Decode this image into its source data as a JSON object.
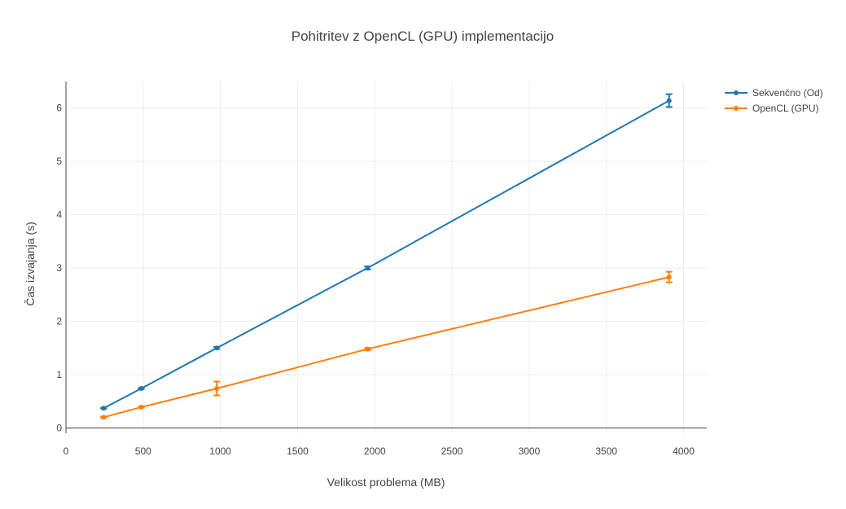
{
  "chart_data": {
    "type": "line",
    "title": "Pohitritev z OpenCL (GPU) implementacijo",
    "xlabel": "Velikost problema (MB)",
    "ylabel": "Čas izvajanja (s)",
    "xlim": [
      0,
      4150
    ],
    "ylim": [
      -0.1,
      6.5
    ],
    "x_ticks": [
      0,
      500,
      1000,
      1500,
      2000,
      2500,
      3000,
      3500,
      4000
    ],
    "y_ticks": [
      0,
      1,
      2,
      3,
      4,
      5,
      6
    ],
    "grid": true,
    "legend_position": "top-right",
    "series": [
      {
        "name": "Sekvenčno (Od)",
        "color": "#1f77b4",
        "x": [
          244,
          488,
          977,
          1953,
          3906
        ],
        "y": [
          0.37,
          0.74,
          1.5,
          3.0,
          6.14
        ],
        "error": [
          0.01,
          0.01,
          0.02,
          0.03,
          0.12
        ]
      },
      {
        "name": "OpenCL (GPU)",
        "color": "#ff7f0e",
        "x": [
          244,
          488,
          977,
          1953,
          3906
        ],
        "y": [
          0.2,
          0.39,
          0.74,
          1.48,
          2.83
        ],
        "error": [
          0.01,
          0.01,
          0.13,
          0.02,
          0.1
        ]
      }
    ]
  }
}
